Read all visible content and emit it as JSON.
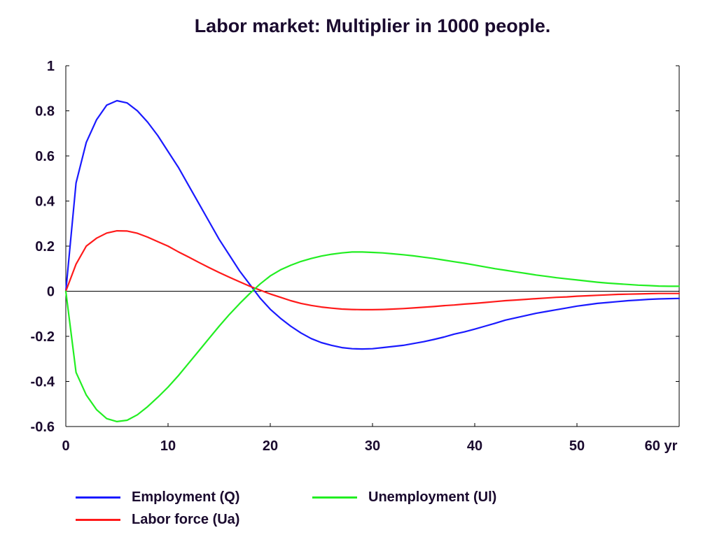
{
  "chart_data": {
    "type": "line",
    "title": "Labor market: Multiplier in 1000 people.",
    "xlabel": "",
    "ylabel": "",
    "x_unit_label": "yr",
    "xlim": [
      0,
      60
    ],
    "ylim": [
      -0.6,
      1
    ],
    "x_ticks": [
      0,
      10,
      20,
      30,
      40,
      50,
      60
    ],
    "x_tick_labels": [
      "0",
      "10",
      "20",
      "30",
      "40",
      "50",
      "60 yr"
    ],
    "y_ticks": [
      1,
      0.8,
      0.6,
      0.4,
      0.2,
      0,
      -0.2,
      -0.4,
      -0.6
    ],
    "y_tick_labels": [
      "1",
      "0.8",
      "0.6",
      "0.4",
      "0.2",
      "0",
      "-0.2",
      "-0.4",
      "-0.6"
    ],
    "grid": false,
    "legend_position": "bottom",
    "x": [
      0,
      1,
      2,
      3,
      4,
      5,
      6,
      7,
      8,
      9,
      10,
      11,
      12,
      13,
      14,
      15,
      16,
      17,
      18,
      19,
      20,
      21,
      22,
      23,
      24,
      25,
      26,
      27,
      28,
      29,
      30,
      31,
      32,
      33,
      34,
      35,
      36,
      37,
      38,
      39,
      40,
      41,
      42,
      43,
      44,
      45,
      46,
      47,
      48,
      49,
      50,
      51,
      52,
      53,
      54,
      55,
      56,
      57,
      58,
      59,
      60
    ],
    "series": [
      {
        "name": "Employment (Q)",
        "color": "#1a1aff",
        "values": [
          0,
          0.48,
          0.66,
          0.76,
          0.825,
          0.845,
          0.835,
          0.8,
          0.75,
          0.69,
          0.62,
          0.55,
          0.47,
          0.39,
          0.31,
          0.23,
          0.16,
          0.09,
          0.03,
          -0.03,
          -0.08,
          -0.12,
          -0.155,
          -0.185,
          -0.21,
          -0.228,
          -0.24,
          -0.25,
          -0.255,
          -0.256,
          -0.255,
          -0.25,
          -0.245,
          -0.24,
          -0.232,
          -0.224,
          -0.214,
          -0.203,
          -0.19,
          -0.18,
          -0.168,
          -0.155,
          -0.142,
          -0.128,
          -0.118,
          -0.108,
          -0.098,
          -0.09,
          -0.082,
          -0.074,
          -0.066,
          -0.06,
          -0.054,
          -0.05,
          -0.046,
          -0.042,
          -0.039,
          -0.036,
          -0.034,
          -0.033,
          -0.032
        ]
      },
      {
        "name": "Labor force (Ua)",
        "color": "#ff1a1a",
        "values": [
          0,
          0.12,
          0.2,
          0.235,
          0.258,
          0.268,
          0.267,
          0.257,
          0.24,
          0.22,
          0.2,
          0.175,
          0.152,
          0.128,
          0.105,
          0.083,
          0.062,
          0.042,
          0.022,
          0.005,
          -0.012,
          -0.027,
          -0.042,
          -0.054,
          -0.063,
          -0.07,
          -0.075,
          -0.079,
          -0.081,
          -0.082,
          -0.082,
          -0.081,
          -0.079,
          -0.077,
          -0.074,
          -0.071,
          -0.068,
          -0.064,
          -0.061,
          -0.057,
          -0.054,
          -0.05,
          -0.046,
          -0.042,
          -0.039,
          -0.036,
          -0.033,
          -0.03,
          -0.027,
          -0.025,
          -0.022,
          -0.02,
          -0.018,
          -0.016,
          -0.014,
          -0.013,
          -0.012,
          -0.011,
          -0.01,
          -0.01,
          -0.01
        ]
      },
      {
        "name": "Unemployment (Ul)",
        "color": "#22ee22",
        "values": [
          0,
          -0.36,
          -0.46,
          -0.525,
          -0.565,
          -0.578,
          -0.572,
          -0.548,
          -0.512,
          -0.47,
          -0.425,
          -0.375,
          -0.32,
          -0.265,
          -0.21,
          -0.155,
          -0.103,
          -0.055,
          -0.01,
          0.032,
          0.068,
          0.095,
          0.115,
          0.132,
          0.145,
          0.156,
          0.164,
          0.17,
          0.174,
          0.174,
          0.172,
          0.17,
          0.166,
          0.162,
          0.157,
          0.151,
          0.145,
          0.138,
          0.131,
          0.124,
          0.116,
          0.108,
          0.1,
          0.093,
          0.086,
          0.079,
          0.072,
          0.066,
          0.06,
          0.055,
          0.05,
          0.045,
          0.04,
          0.036,
          0.033,
          0.03,
          0.027,
          0.025,
          0.023,
          0.022,
          0.022
        ]
      }
    ]
  }
}
